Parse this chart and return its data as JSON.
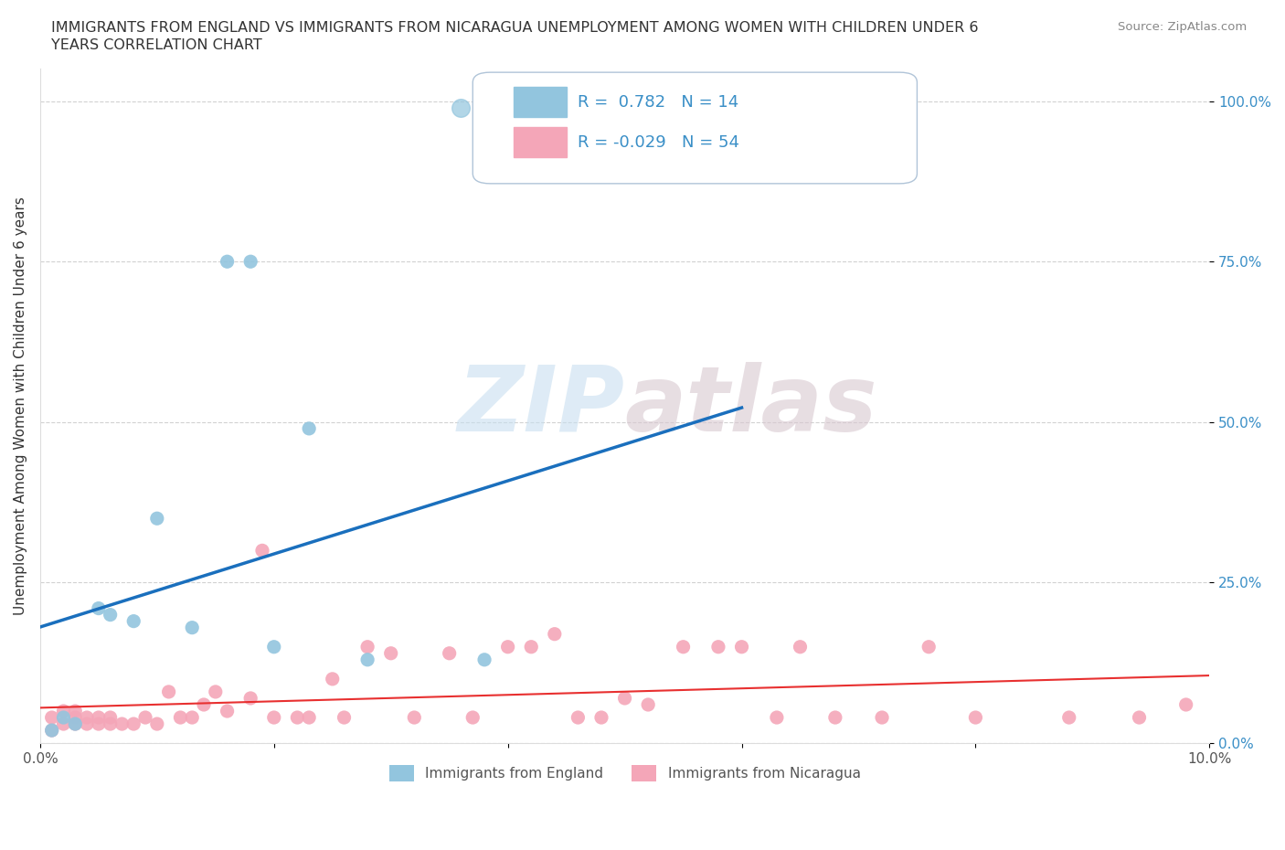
{
  "title_line1": "IMMIGRANTS FROM ENGLAND VS IMMIGRANTS FROM NICARAGUA UNEMPLOYMENT AMONG WOMEN WITH CHILDREN UNDER 6",
  "title_line2": "YEARS CORRELATION CHART",
  "source": "Source: ZipAtlas.com",
  "ylabel": "Unemployment Among Women with Children Under 6 years",
  "watermark_zip": "ZIP",
  "watermark_atlas": "atlas",
  "england_R": 0.782,
  "england_N": 14,
  "nicaragua_R": -0.029,
  "nicaragua_N": 54,
  "england_color": "#92c5de",
  "nicaragua_color": "#f4a6b8",
  "england_line_color": "#1a6fbd",
  "nicaragua_line_color": "#e83030",
  "text_blue": "#3a8fc7",
  "xlim": [
    0.0,
    0.1
  ],
  "ylim": [
    0.0,
    1.05
  ],
  "england_x": [
    0.001,
    0.002,
    0.003,
    0.005,
    0.006,
    0.008,
    0.01,
    0.013,
    0.016,
    0.018,
    0.02,
    0.023,
    0.028,
    0.038
  ],
  "england_y": [
    0.02,
    0.04,
    0.03,
    0.21,
    0.2,
    0.19,
    0.35,
    0.18,
    0.75,
    0.75,
    0.15,
    0.49,
    0.13,
    0.13
  ],
  "nicaragua_x": [
    0.001,
    0.001,
    0.002,
    0.002,
    0.003,
    0.003,
    0.003,
    0.004,
    0.004,
    0.005,
    0.005,
    0.006,
    0.006,
    0.007,
    0.008,
    0.009,
    0.01,
    0.011,
    0.012,
    0.013,
    0.014,
    0.015,
    0.016,
    0.018,
    0.019,
    0.02,
    0.022,
    0.023,
    0.025,
    0.026,
    0.028,
    0.03,
    0.032,
    0.035,
    0.037,
    0.04,
    0.042,
    0.044,
    0.046,
    0.048,
    0.05,
    0.052,
    0.055,
    0.058,
    0.06,
    0.063,
    0.065,
    0.068,
    0.072,
    0.076,
    0.08,
    0.088,
    0.094,
    0.098
  ],
  "nicaragua_y": [
    0.02,
    0.04,
    0.03,
    0.05,
    0.04,
    0.03,
    0.05,
    0.04,
    0.03,
    0.03,
    0.04,
    0.03,
    0.04,
    0.03,
    0.03,
    0.04,
    0.03,
    0.08,
    0.04,
    0.04,
    0.06,
    0.08,
    0.05,
    0.07,
    0.3,
    0.04,
    0.04,
    0.04,
    0.1,
    0.04,
    0.15,
    0.14,
    0.04,
    0.14,
    0.04,
    0.15,
    0.15,
    0.17,
    0.04,
    0.04,
    0.07,
    0.06,
    0.15,
    0.15,
    0.15,
    0.04,
    0.15,
    0.04,
    0.04,
    0.15,
    0.04,
    0.04,
    0.04,
    0.06
  ]
}
